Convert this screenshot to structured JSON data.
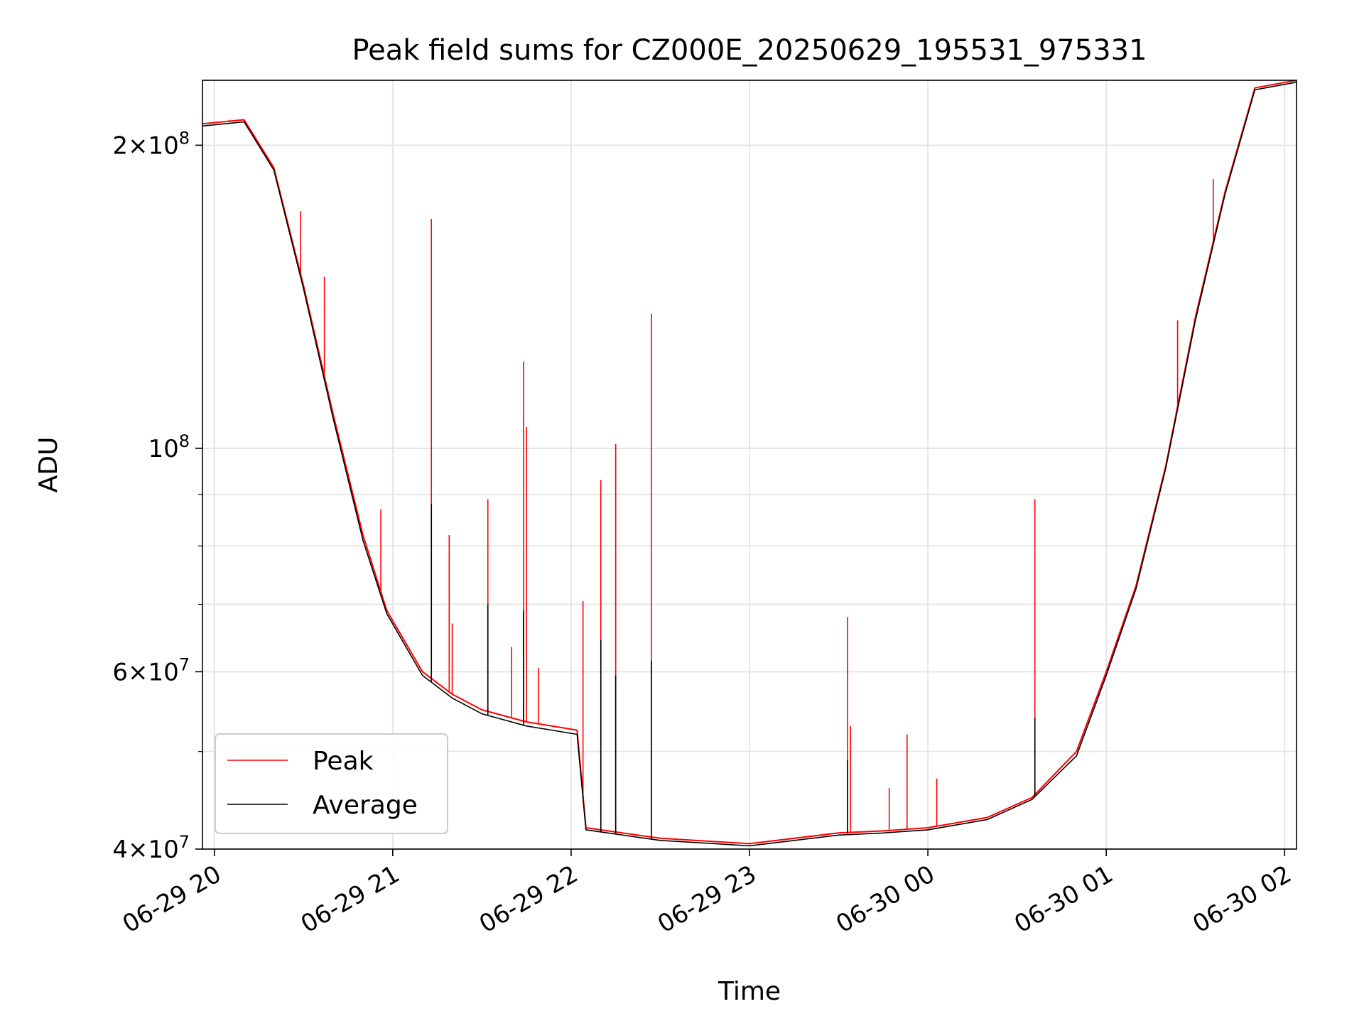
{
  "chart_data": {
    "type": "line",
    "title": "Peak field sums for CZ000E_20250629_195531_975331",
    "xlabel": "Time",
    "ylabel": "ADU",
    "yscale": "log",
    "xlim": [
      "2025-06-29T19:56",
      "2025-06-30T02:04"
    ],
    "ylim": [
      40000000,
      232000000
    ],
    "x_ticks": [
      {
        "value": "2025-06-29T20:00",
        "label": "06-29 20"
      },
      {
        "value": "2025-06-29T21:00",
        "label": "06-29 21"
      },
      {
        "value": "2025-06-29T22:00",
        "label": "06-29 22"
      },
      {
        "value": "2025-06-29T23:00",
        "label": "06-29 23"
      },
      {
        "value": "2025-06-30T00:00",
        "label": "06-30 00"
      },
      {
        "value": "2025-06-30T01:00",
        "label": "06-30 01"
      },
      {
        "value": "2025-06-30T02:00",
        "label": "06-30 02"
      }
    ],
    "y_ticks": [
      {
        "value": 40000000,
        "base": "4",
        "sup": "7"
      },
      {
        "value": 60000000,
        "base": "6",
        "sup": "7"
      },
      {
        "value": 100000000,
        "base": "",
        "sup": "8"
      },
      {
        "value": 200000000,
        "base": "2",
        "sup": "8"
      }
    ],
    "y_minor_grid": [
      50000000,
      70000000,
      80000000,
      90000000
    ],
    "grid": true,
    "legend_position": "lower-left",
    "series": [
      {
        "name": "Peak",
        "color": "#ff0000",
        "x": [
          "2025-06-29T19:56",
          "2025-06-29T20:10",
          "2025-06-29T20:20",
          "2025-06-29T20:30",
          "2025-06-29T20:40",
          "2025-06-29T20:50",
          "2025-06-29T20:58",
          "2025-06-29T21:10",
          "2025-06-29T21:20",
          "2025-06-29T21:30",
          "2025-06-29T21:45",
          "2025-06-29T22:02",
          "2025-06-29T22:05",
          "2025-06-29T22:30",
          "2025-06-29T23:00",
          "2025-06-29T23:30",
          "2025-06-29T23:45",
          "2025-06-30T00:00",
          "2025-06-30T00:20",
          "2025-06-30T00:35",
          "2025-06-30T00:50",
          "2025-06-30T01:00",
          "2025-06-30T01:10",
          "2025-06-30T01:20",
          "2025-06-30T01:30",
          "2025-06-30T01:40",
          "2025-06-30T01:50",
          "2025-06-30T02:04"
        ],
        "y": [
          210000000,
          212000000,
          190000000,
          145000000,
          108000000,
          82000000,
          69000000,
          60000000,
          57000000,
          55000000,
          53500000,
          52500000,
          42000000,
          41000000,
          40500000,
          41500000,
          41700000,
          42000000,
          43000000,
          45000000,
          50000000,
          60000000,
          73000000,
          96000000,
          135000000,
          180000000,
          228000000,
          232000000
        ],
        "spikes": [
          {
            "x": "2025-06-29T20:05",
            "y": 212000000
          },
          {
            "x": "2025-06-29T20:29",
            "y": 172000000
          },
          {
            "x": "2025-06-29T20:37",
            "y": 148000000
          },
          {
            "x": "2025-06-29T20:56",
            "y": 87000000
          },
          {
            "x": "2025-06-29T21:13",
            "y": 169000000
          },
          {
            "x": "2025-06-29T21:19",
            "y": 82000000
          },
          {
            "x": "2025-06-29T21:20",
            "y": 67000000
          },
          {
            "x": "2025-06-29T21:32",
            "y": 89000000
          },
          {
            "x": "2025-06-29T21:40",
            "y": 63500000
          },
          {
            "x": "2025-06-29T21:44",
            "y": 122000000
          },
          {
            "x": "2025-06-29T21:45",
            "y": 105000000
          },
          {
            "x": "2025-06-29T21:49",
            "y": 60500000
          },
          {
            "x": "2025-06-29T22:04",
            "y": 70500000
          },
          {
            "x": "2025-06-29T22:10",
            "y": 93000000
          },
          {
            "x": "2025-06-29T22:15",
            "y": 101000000
          },
          {
            "x": "2025-06-29T22:27",
            "y": 136000000
          },
          {
            "x": "2025-06-29T23:33",
            "y": 68000000
          },
          {
            "x": "2025-06-29T23:34",
            "y": 53000000
          },
          {
            "x": "2025-06-29T23:47",
            "y": 46000000
          },
          {
            "x": "2025-06-29T23:53",
            "y": 52000000
          },
          {
            "x": "2025-06-30T00:03",
            "y": 47000000
          },
          {
            "x": "2025-06-30T00:36",
            "y": 89000000
          },
          {
            "x": "2025-06-30T01:24",
            "y": 134000000
          },
          {
            "x": "2025-06-30T01:36",
            "y": 185000000
          }
        ]
      },
      {
        "name": "Average",
        "color": "#000000",
        "x": [
          "2025-06-29T19:56",
          "2025-06-29T20:10",
          "2025-06-29T20:20",
          "2025-06-29T20:30",
          "2025-06-29T20:40",
          "2025-06-29T20:50",
          "2025-06-29T20:58",
          "2025-06-29T21:10",
          "2025-06-29T21:20",
          "2025-06-29T21:30",
          "2025-06-29T21:45",
          "2025-06-29T22:02",
          "2025-06-29T22:05",
          "2025-06-29T22:30",
          "2025-06-29T23:00",
          "2025-06-29T23:30",
          "2025-06-29T23:45",
          "2025-06-30T00:00",
          "2025-06-30T00:20",
          "2025-06-30T00:35",
          "2025-06-30T00:50",
          "2025-06-30T01:00",
          "2025-06-30T01:10",
          "2025-06-30T01:20",
          "2025-06-30T01:30",
          "2025-06-30T01:40",
          "2025-06-30T01:50",
          "2025-06-30T02:04"
        ],
        "y": [
          209000000,
          211000000,
          189000000,
          144000000,
          107000000,
          81000000,
          68500000,
          59500000,
          56500000,
          54500000,
          53000000,
          52000000,
          41800000,
          40800000,
          40300000,
          41300000,
          41500000,
          41800000,
          42800000,
          44800000,
          49500000,
          59500000,
          72500000,
          95500000,
          134000000,
          179000000,
          227000000,
          231000000
        ],
        "spikes": [
          {
            "x": "2025-06-29T21:13",
            "y": 88000000
          },
          {
            "x": "2025-06-29T21:32",
            "y": 70000000
          },
          {
            "x": "2025-06-29T21:44",
            "y": 69000000
          },
          {
            "x": "2025-06-29T22:10",
            "y": 64500000
          },
          {
            "x": "2025-06-29T22:15",
            "y": 59500000
          },
          {
            "x": "2025-06-29T22:27",
            "y": 61500000
          },
          {
            "x": "2025-06-29T23:33",
            "y": 49000000
          },
          {
            "x": "2025-06-30T00:36",
            "y": 54000000
          }
        ]
      }
    ]
  }
}
